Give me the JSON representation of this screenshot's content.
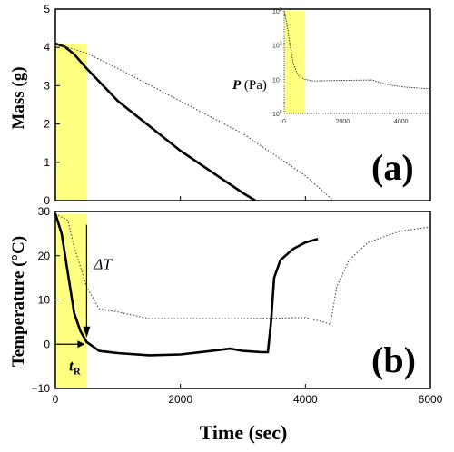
{
  "chart_data": [
    {
      "id": "a",
      "type": "line",
      "panel_label": "(a)",
      "ylabel": "Mass (g)",
      "xlim": [
        0,
        6000
      ],
      "ylim": [
        0,
        5
      ],
      "yticks": [
        "0",
        "1",
        "2",
        "3",
        "4",
        "5"
      ],
      "shaded_x": [
        0,
        500
      ],
      "shade_color": "#ffff80",
      "series": [
        {
          "style": "solid",
          "color": "#000000",
          "x": [
            0,
            150,
            300,
            500,
            1000,
            2000,
            3000,
            3200
          ],
          "y": [
            4.1,
            4.02,
            3.82,
            3.45,
            2.6,
            1.3,
            0.2,
            0.0
          ]
        },
        {
          "style": "dotted",
          "color": "#444444",
          "x": [
            0,
            500,
            1000,
            2000,
            3000,
            4000,
            4450
          ],
          "y": [
            4.1,
            3.85,
            3.45,
            2.6,
            1.75,
            0.65,
            0.0
          ]
        }
      ],
      "inset": {
        "ylabel": "P  (Pa)",
        "ytick_labels": [
          "10",
          "10",
          "10",
          "10"
        ],
        "ytick_exponents": [
          "3",
          "2",
          "1",
          "0"
        ],
        "xtick_labels": [
          "0",
          "2000",
          "4000"
        ],
        "shaded_x": [
          0,
          700
        ],
        "x": [
          0,
          100,
          200,
          300,
          400,
          500,
          700,
          1000,
          2000,
          3000,
          3500,
          4000,
          4500,
          5000
        ],
        "logP": [
          3.0,
          2.6,
          2.0,
          1.5,
          1.25,
          1.1,
          1.0,
          0.95,
          0.97,
          0.98,
          0.85,
          0.78,
          0.75,
          0.72
        ]
      }
    },
    {
      "id": "b",
      "type": "line",
      "panel_label": "(b)",
      "ylabel": "Temperature (°C)",
      "xlabel": "Time  (sec)",
      "xlim": [
        0,
        6000
      ],
      "ylim": [
        -10,
        30
      ],
      "xticks": [
        "0",
        "2000",
        "4000",
        "6000"
      ],
      "yticks": [
        "30",
        "20",
        "10",
        "0",
        "−10"
      ],
      "shaded_x": [
        0,
        500
      ],
      "shade_color": "#ffff80",
      "annotations": {
        "delta_t": "ΔT",
        "t_r": "t",
        "t_r_sub": "R"
      },
      "series": [
        {
          "style": "solid",
          "color": "#000000",
          "x": [
            0,
            100,
            200,
            300,
            400,
            500,
            700,
            1000,
            1500,
            2000,
            2500,
            2800,
            3000,
            3300,
            3400,
            3450,
            3500,
            3600,
            3800,
            4000,
            4200
          ],
          "y": [
            29.5,
            25,
            16,
            7,
            3,
            0.5,
            -1.5,
            -2,
            -2.5,
            -2.3,
            -1.5,
            -1,
            -1.5,
            -1.8,
            -1.8,
            5,
            15,
            19,
            21.5,
            23,
            23.8
          ]
        },
        {
          "style": "dotted",
          "color": "#444444",
          "x": [
            0,
            200,
            300,
            500,
            700,
            1000,
            1500,
            2000,
            3000,
            4000,
            4300,
            4400,
            4500,
            4700,
            5000,
            5500,
            6000
          ],
          "y": [
            29.5,
            28,
            22,
            13,
            8,
            7.3,
            5.8,
            5.8,
            5.8,
            6,
            5,
            4.5,
            13,
            19,
            23,
            25.5,
            26.5
          ]
        }
      ]
    }
  ]
}
